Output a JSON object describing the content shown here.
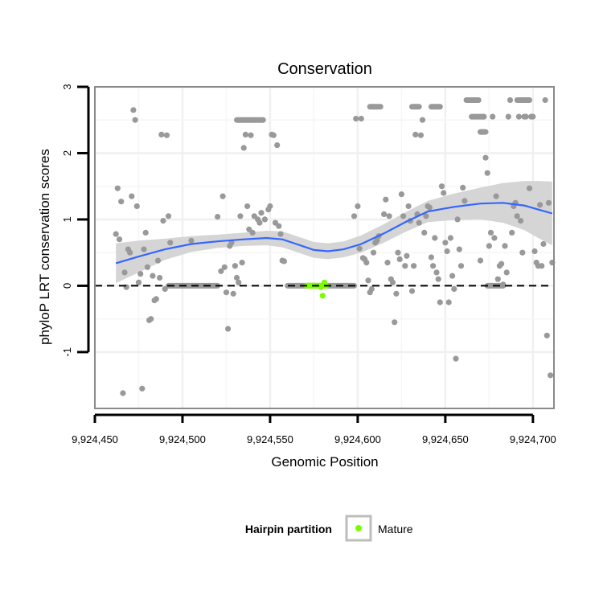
{
  "chart_data": {
    "type": "scatter",
    "title": "Conservation",
    "xlabel": "Genomic Position",
    "ylabel": "phyloP LRT conservation scores",
    "xlim": [
      9924450,
      9924712
    ],
    "ylim": [
      -1.85,
      3.0
    ],
    "x_ticks": [
      9924450,
      9924500,
      9924550,
      9924600,
      9924650,
      9924700
    ],
    "x_tick_labels": [
      "9,924,450",
      "9,924,500",
      "9,924,550",
      "9,924,600",
      "9,924,650",
      "9,924,700"
    ],
    "y_ticks": [
      -1,
      0,
      1,
      2,
      3
    ],
    "y_tick_labels": [
      "-1",
      "0",
      "1",
      "2",
      "3"
    ],
    "grid": true,
    "reference_line": {
      "y": 0,
      "style": "dashed"
    },
    "legend": {
      "title": "Hairpin partition",
      "position": "bottom",
      "entries": [
        "Mature"
      ]
    },
    "colors": {
      "points": "#999999",
      "mature": "#7cfc00",
      "smooth": "#3366ff",
      "ribbon": "#d3d3d3"
    },
    "points": [
      [
        9924462,
        0.78
      ],
      [
        9924463,
        1.47
      ],
      [
        9924464,
        0.7
      ],
      [
        9924465,
        1.27
      ],
      [
        9924466,
        -1.62
      ],
      [
        9924467,
        0.2
      ],
      [
        9924468,
        -0.02
      ],
      [
        9924469,
        0.55
      ],
      [
        9924470,
        0.5
      ],
      [
        9924471,
        1.35
      ],
      [
        9924472,
        2.65
      ],
      [
        9924473,
        2.5
      ],
      [
        9924474,
        1.2
      ],
      [
        9924475,
        0.05
      ],
      [
        9924476,
        0.18
      ],
      [
        9924477,
        -1.55
      ],
      [
        9924478,
        0.55
      ],
      [
        9924479,
        0.8
      ],
      [
        9924480,
        0.28
      ],
      [
        9924481,
        -0.52
      ],
      [
        9924482,
        -0.5
      ],
      [
        9924483,
        0.15
      ],
      [
        9924484,
        -0.22
      ],
      [
        9924485,
        -0.2
      ],
      [
        9924486,
        0.38
      ],
      [
        9924487,
        0.12
      ],
      [
        9924488,
        2.28
      ],
      [
        9924489,
        0.98
      ],
      [
        9924490,
        -0.05
      ],
      [
        9924491,
        2.27
      ],
      [
        9924492,
        1.05
      ],
      [
        9924493,
        0.65
      ],
      [
        9924505,
        0.68
      ],
      [
        9924520,
        1.04
      ],
      [
        9924522,
        0.22
      ],
      [
        9924523,
        1.35
      ],
      [
        9924524,
        0.28
      ],
      [
        9924525,
        -0.1
      ],
      [
        9924526,
        -0.65
      ],
      [
        9924527,
        0.6
      ],
      [
        9924528,
        0.65
      ],
      [
        9924529,
        -0.12
      ],
      [
        9924530,
        0.3
      ],
      [
        9924531,
        0.12
      ],
      [
        9924532,
        0.05
      ],
      [
        9924533,
        1.05
      ],
      [
        9924534,
        0.35
      ],
      [
        9924535,
        2.08
      ],
      [
        9924536,
        2.28
      ],
      [
        9924537,
        1.2
      ],
      [
        9924538,
        0.85
      ],
      [
        9924539,
        2.27
      ],
      [
        9924540,
        0.8
      ],
      [
        9924541,
        1.05
      ],
      [
        9924543,
        1.0
      ],
      [
        9924544,
        0.95
      ],
      [
        9924545,
        1.1
      ],
      [
        9924547,
        1.0
      ],
      [
        9924549,
        1.15
      ],
      [
        9924550,
        1.2
      ],
      [
        9924551,
        2.28
      ],
      [
        9924552,
        2.27
      ],
      [
        9924553,
        0.95
      ],
      [
        9924554,
        2.12
      ],
      [
        9924555,
        0.9
      ],
      [
        9924556,
        0.78
      ],
      [
        9924557,
        0.38
      ],
      [
        9924558,
        0.37
      ],
      [
        9924598,
        1.05
      ],
      [
        9924599,
        2.52
      ],
      [
        9924600,
        1.2
      ],
      [
        9924601,
        0.56
      ],
      [
        9924602,
        2.52
      ],
      [
        9924603,
        0.42
      ],
      [
        9924604,
        0.4
      ],
      [
        9924605,
        0.35
      ],
      [
        9924606,
        0.08
      ],
      [
        9924607,
        -0.1
      ],
      [
        9924608,
        -0.05
      ],
      [
        9924609,
        0.5
      ],
      [
        9924610,
        0.65
      ],
      [
        9924611,
        0.68
      ],
      [
        9924612,
        0.75
      ],
      [
        9924615,
        1.08
      ],
      [
        9924616,
        1.3
      ],
      [
        9924617,
        0.35
      ],
      [
        9924618,
        1.05
      ],
      [
        9924619,
        0.1
      ],
      [
        9924620,
        0.05
      ],
      [
        9924621,
        -0.55
      ],
      [
        9924622,
        -0.12
      ],
      [
        9924623,
        0.5
      ],
      [
        9924624,
        0.4
      ],
      [
        9924625,
        1.38
      ],
      [
        9924626,
        1.05
      ],
      [
        9924627,
        0.3
      ],
      [
        9924628,
        0.45
      ],
      [
        9924629,
        1.2
      ],
      [
        9924630,
        0.98
      ],
      [
        9924631,
        -0.08
      ],
      [
        9924632,
        0.3
      ],
      [
        9924633,
        2.28
      ],
      [
        9924634,
        1.08
      ],
      [
        9924635,
        0.95
      ],
      [
        9924636,
        2.27
      ],
      [
        9924637,
        2.5
      ],
      [
        9924638,
        0.8
      ],
      [
        9924639,
        1.05
      ],
      [
        9924640,
        1.2
      ],
      [
        9924641,
        1.18
      ],
      [
        9924642,
        0.43
      ],
      [
        9924643,
        0.3
      ],
      [
        9924644,
        0.72
      ],
      [
        9924645,
        0.2
      ],
      [
        9924646,
        0.1
      ],
      [
        9924647,
        -0.25
      ],
      [
        9924648,
        1.5
      ],
      [
        9924649,
        1.4
      ],
      [
        9924650,
        0.65
      ],
      [
        9924651,
        0.52
      ],
      [
        9924652,
        -0.25
      ],
      [
        9924653,
        0.72
      ],
      [
        9924654,
        0.15
      ],
      [
        9924655,
        -0.05
      ],
      [
        9924656,
        -1.1
      ],
      [
        9924657,
        1.0
      ],
      [
        9924658,
        0.55
      ],
      [
        9924659,
        0.3
      ],
      [
        9924660,
        1.48
      ],
      [
        9924661,
        1.28
      ],
      [
        9924670,
        0.38
      ],
      [
        9924671,
        2.32
      ],
      [
        9924672,
        2.55
      ],
      [
        9924673,
        1.93
      ],
      [
        9924674,
        1.7
      ],
      [
        9924675,
        0.6
      ],
      [
        9924676,
        0.8
      ],
      [
        9924677,
        2.55
      ],
      [
        9924678,
        0.72
      ],
      [
        9924679,
        1.35
      ],
      [
        9924680,
        0.1
      ],
      [
        9924681,
        0.3
      ],
      [
        9924682,
        0.33
      ],
      [
        9924683,
        0.02
      ],
      [
        9924684,
        0.6
      ],
      [
        9924685,
        0.2
      ],
      [
        9924686,
        2.55
      ],
      [
        9924687,
        2.8
      ],
      [
        9924688,
        0.8
      ],
      [
        9924689,
        1.2
      ],
      [
        9924690,
        1.25
      ],
      [
        9924691,
        1.05
      ],
      [
        9924692,
        2.55
      ],
      [
        9924693,
        0.98
      ],
      [
        9924694,
        0.5
      ],
      [
        9924695,
        2.55
      ],
      [
        9924696,
        2.55
      ],
      [
        9924697,
        2.8
      ],
      [
        9924698,
        1.47
      ],
      [
        9924699,
        2.55
      ],
      [
        9924700,
        2.55
      ],
      [
        9924701,
        0.52
      ],
      [
        9924702,
        0.35
      ],
      [
        9924703,
        0.3
      ],
      [
        9924704,
        1.22
      ],
      [
        9924705,
        0.3
      ],
      [
        9924706,
        0.63
      ],
      [
        9924707,
        2.8
      ],
      [
        9924708,
        -0.75
      ],
      [
        9924709,
        1.25
      ],
      [
        9924710,
        -1.35
      ],
      [
        9924711,
        0.35
      ]
    ],
    "point_runs": [
      {
        "x": [
          9924492,
          9924520
        ],
        "y": 0
      },
      {
        "x": [
          9924560,
          9924598
        ],
        "y": 0
      },
      {
        "x": [
          9924607,
          9924613
        ],
        "y": 2.7
      },
      {
        "x": [
          9924631,
          9924635
        ],
        "y": 2.7
      },
      {
        "x": [
          9924642,
          9924647
        ],
        "y": 2.7
      },
      {
        "x": [
          9924662,
          9924669
        ],
        "y": 2.8
      },
      {
        "x": [
          9924665,
          9924672
        ],
        "y": 2.55
      },
      {
        "x": [
          9924670,
          9924673
        ],
        "y": 2.32
      },
      {
        "x": [
          9924691,
          9924698
        ],
        "y": 2.8
      },
      {
        "x": [
          9924674,
          9924683
        ],
        "y": 0
      },
      {
        "x": [
          9924531,
          9924546
        ],
        "y": 2.5
      }
    ],
    "mature_points": [
      [
        9924571,
        0.0
      ],
      [
        9924572,
        0.0
      ],
      [
        9924573,
        0.0
      ],
      [
        9924574,
        0.0
      ],
      [
        9924575,
        0.0
      ],
      [
        9924576,
        0.0
      ],
      [
        9924577,
        0.0
      ],
      [
        9924578,
        0.0
      ],
      [
        9924579,
        -0.02
      ],
      [
        9924580,
        -0.15
      ],
      [
        9924581,
        0.05
      ],
      [
        9924582,
        0.0
      ]
    ],
    "smooth_line": [
      [
        9924462,
        0.34
      ],
      [
        9924475,
        0.44
      ],
      [
        9924490,
        0.55
      ],
      [
        9924505,
        0.63
      ],
      [
        9924520,
        0.67
      ],
      [
        9924535,
        0.7
      ],
      [
        9924548,
        0.72
      ],
      [
        9924557,
        0.7
      ],
      [
        9924565,
        0.63
      ],
      [
        9924575,
        0.54
      ],
      [
        9924583,
        0.52
      ],
      [
        9924592,
        0.55
      ],
      [
        9924602,
        0.63
      ],
      [
        9924615,
        0.79
      ],
      [
        9924628,
        0.97
      ],
      [
        9924640,
        1.12
      ],
      [
        9924655,
        1.19
      ],
      [
        9924670,
        1.24
      ],
      [
        9924683,
        1.25
      ],
      [
        9924695,
        1.21
      ],
      [
        9924703,
        1.15
      ],
      [
        9924711,
        1.09
      ]
    ],
    "ribbon_halfwidth": [
      [
        9924462,
        0.3
      ],
      [
        9924475,
        0.24
      ],
      [
        9924490,
        0.16
      ],
      [
        9924505,
        0.12
      ],
      [
        9924520,
        0.1
      ],
      [
        9924535,
        0.1
      ],
      [
        9924548,
        0.11
      ],
      [
        9924557,
        0.12
      ],
      [
        9924565,
        0.12
      ],
      [
        9924575,
        0.12
      ],
      [
        9924583,
        0.12
      ],
      [
        9924592,
        0.12
      ],
      [
        9924602,
        0.13
      ],
      [
        9924615,
        0.14
      ],
      [
        9924628,
        0.15
      ],
      [
        9924640,
        0.16
      ],
      [
        9924655,
        0.2
      ],
      [
        9924670,
        0.24
      ],
      [
        9924683,
        0.3
      ],
      [
        9924695,
        0.37
      ],
      [
        9924703,
        0.43
      ],
      [
        9924711,
        0.48
      ]
    ]
  }
}
